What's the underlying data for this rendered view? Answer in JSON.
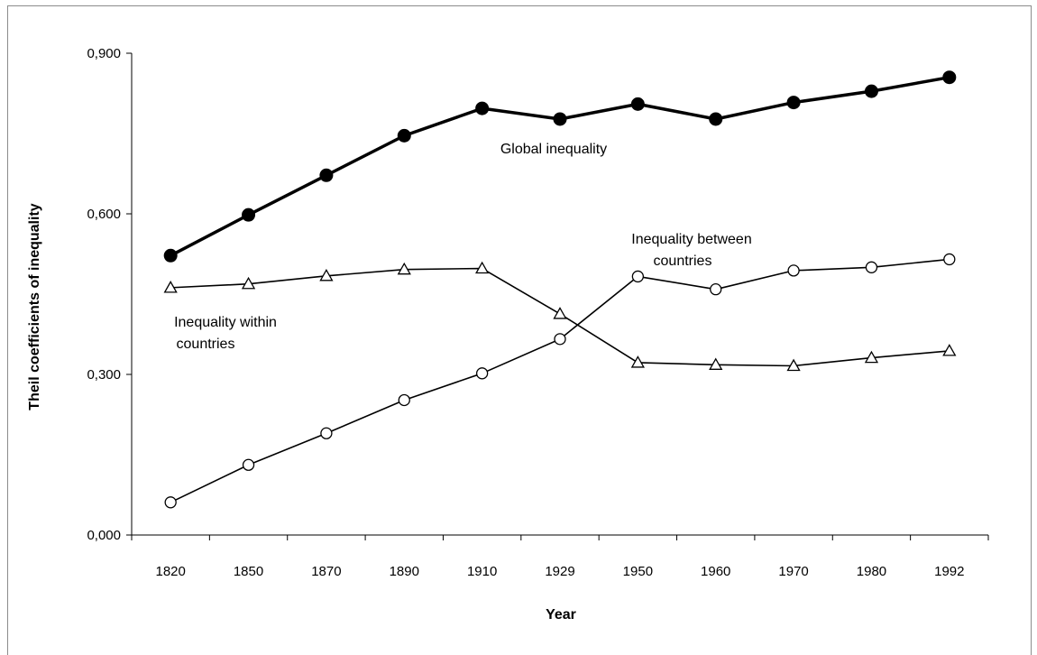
{
  "chart_data": {
    "type": "line",
    "title": "",
    "xlabel": "Year",
    "ylabel": "Theil coefficients of inequality",
    "categories": [
      "1820",
      "1850",
      "1870",
      "1890",
      "1910",
      "1929",
      "1950",
      "1960",
      "1970",
      "1980",
      "1992"
    ],
    "ylim": [
      0,
      0.9
    ],
    "yticks": [
      "0,000",
      "0,300",
      "0,600",
      "0,900"
    ],
    "ytick_values": [
      0,
      0.3,
      0.6,
      0.9
    ],
    "grid": false,
    "legend": "none",
    "series": [
      {
        "key": "global",
        "values": [
          0.522,
          0.598,
          0.672,
          0.746,
          0.797,
          0.777,
          0.805,
          0.777,
          0.808,
          0.829,
          0.855
        ],
        "color": "#000000",
        "marker": "filled-circle"
      },
      {
        "key": "within",
        "values": [
          0.462,
          0.469,
          0.484,
          0.496,
          0.498,
          0.413,
          0.322,
          0.318,
          0.316,
          0.331,
          0.344
        ],
        "color": "#000000",
        "marker": "open-triangle"
      },
      {
        "key": "between",
        "values": [
          0.061,
          0.131,
          0.19,
          0.252,
          0.302,
          0.366,
          0.483,
          0.459,
          0.494,
          0.5,
          0.515
        ],
        "color": "#000000",
        "marker": "open-circle"
      }
    ],
    "annotations": {
      "global": [
        "Global inequality"
      ],
      "between": [
        "Inequality  between",
        "countries"
      ],
      "within": [
        "Inequality  within",
        "countries"
      ]
    }
  }
}
